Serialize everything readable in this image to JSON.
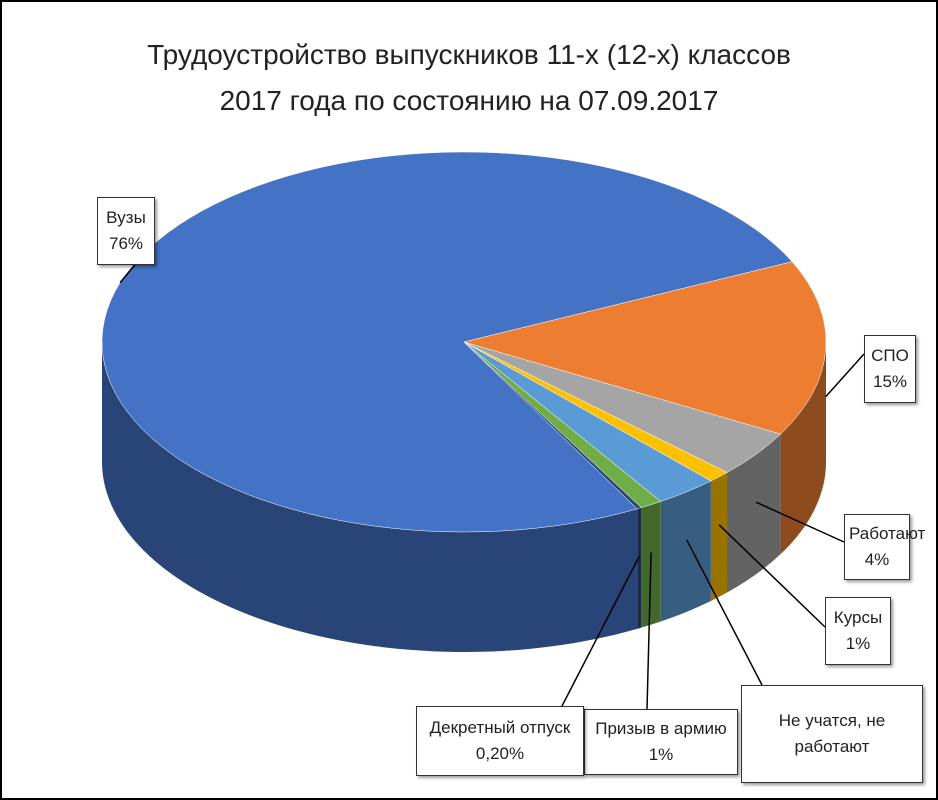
{
  "chart_data": {
    "type": "pie3d",
    "title": "Трудоустройство выпускников 11-х (12-х) классов\n2017 года по состоянию на 07.09.2017",
    "categories": [
      "Вузы",
      "СПО",
      "Работают",
      "Курсы",
      "Не учатся, не работают",
      "Призыв в армию",
      "Декретный отпуск"
    ],
    "values": [
      76,
      15,
      4,
      1,
      2.8,
      1,
      0.2
    ],
    "value_labels": [
      "76%",
      "15%",
      "4%",
      "1%",
      null,
      "1%",
      "0,20%"
    ],
    "colors": [
      "#4472c4",
      "#ed7d31",
      "#a5a5a5",
      "#ffc000",
      "#5b9bd5",
      "#70ad47",
      "#264478"
    ]
  }
}
